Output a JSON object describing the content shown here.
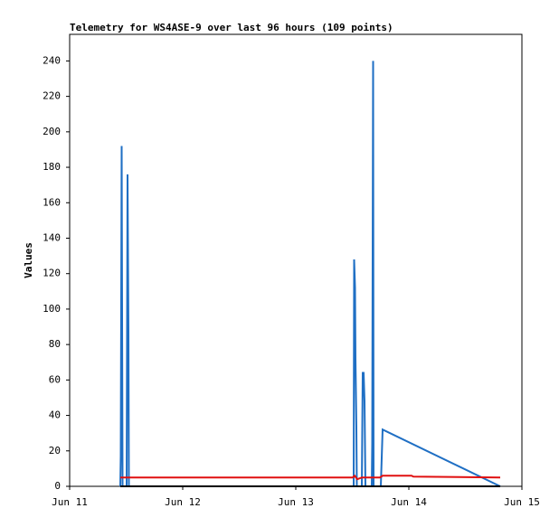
{
  "chart_data": {
    "type": "line",
    "title": "Telemetry for WS4ASE-9 over last 96 hours (109 points)",
    "y_label": "Values",
    "xlim": [
      11,
      15
    ],
    "xticks": [
      {
        "value": 11,
        "label": "Jun 11"
      },
      {
        "value": 12,
        "label": "Jun 12"
      },
      {
        "value": 13,
        "label": "Jun 13"
      },
      {
        "value": 14,
        "label": "Jun 14"
      },
      {
        "value": 15,
        "label": "Jun 15"
      }
    ],
    "ylim": [
      0,
      255
    ],
    "yticks": [
      0,
      20,
      40,
      60,
      80,
      100,
      120,
      140,
      160,
      180,
      200,
      220,
      240
    ],
    "series": [
      {
        "color": "#1f6fc4",
        "x": [
          11.448,
          11.452,
          11.46,
          11.468,
          11.504,
          11.512,
          11.52,
          11.524,
          13.512,
          13.516,
          13.524,
          13.528,
          13.536,
          13.54,
          13.584,
          13.592,
          13.6,
          13.608,
          13.616,
          13.672,
          13.676,
          13.684,
          13.688,
          13.752,
          13.76,
          13.768,
          14.808
        ],
        "values": [
          0,
          17,
          192,
          0,
          0,
          176,
          88,
          0,
          0,
          128,
          112,
          72,
          33,
          0,
          0,
          64,
          64,
          48,
          0,
          0,
          24,
          240,
          0,
          0,
          16,
          32,
          0
        ]
      },
      {
        "color": "#e01010",
        "x": [
          11.448,
          13.504,
          13.52,
          13.544,
          13.584,
          13.744,
          13.768,
          14.024,
          14.04,
          14.808
        ],
        "values": [
          5,
          5,
          6,
          4,
          5,
          5,
          6,
          6,
          5.5,
          5
        ]
      },
      {
        "color": "#000000",
        "x": [
          11.448,
          14.808
        ],
        "values": [
          0,
          0
        ]
      }
    ]
  }
}
